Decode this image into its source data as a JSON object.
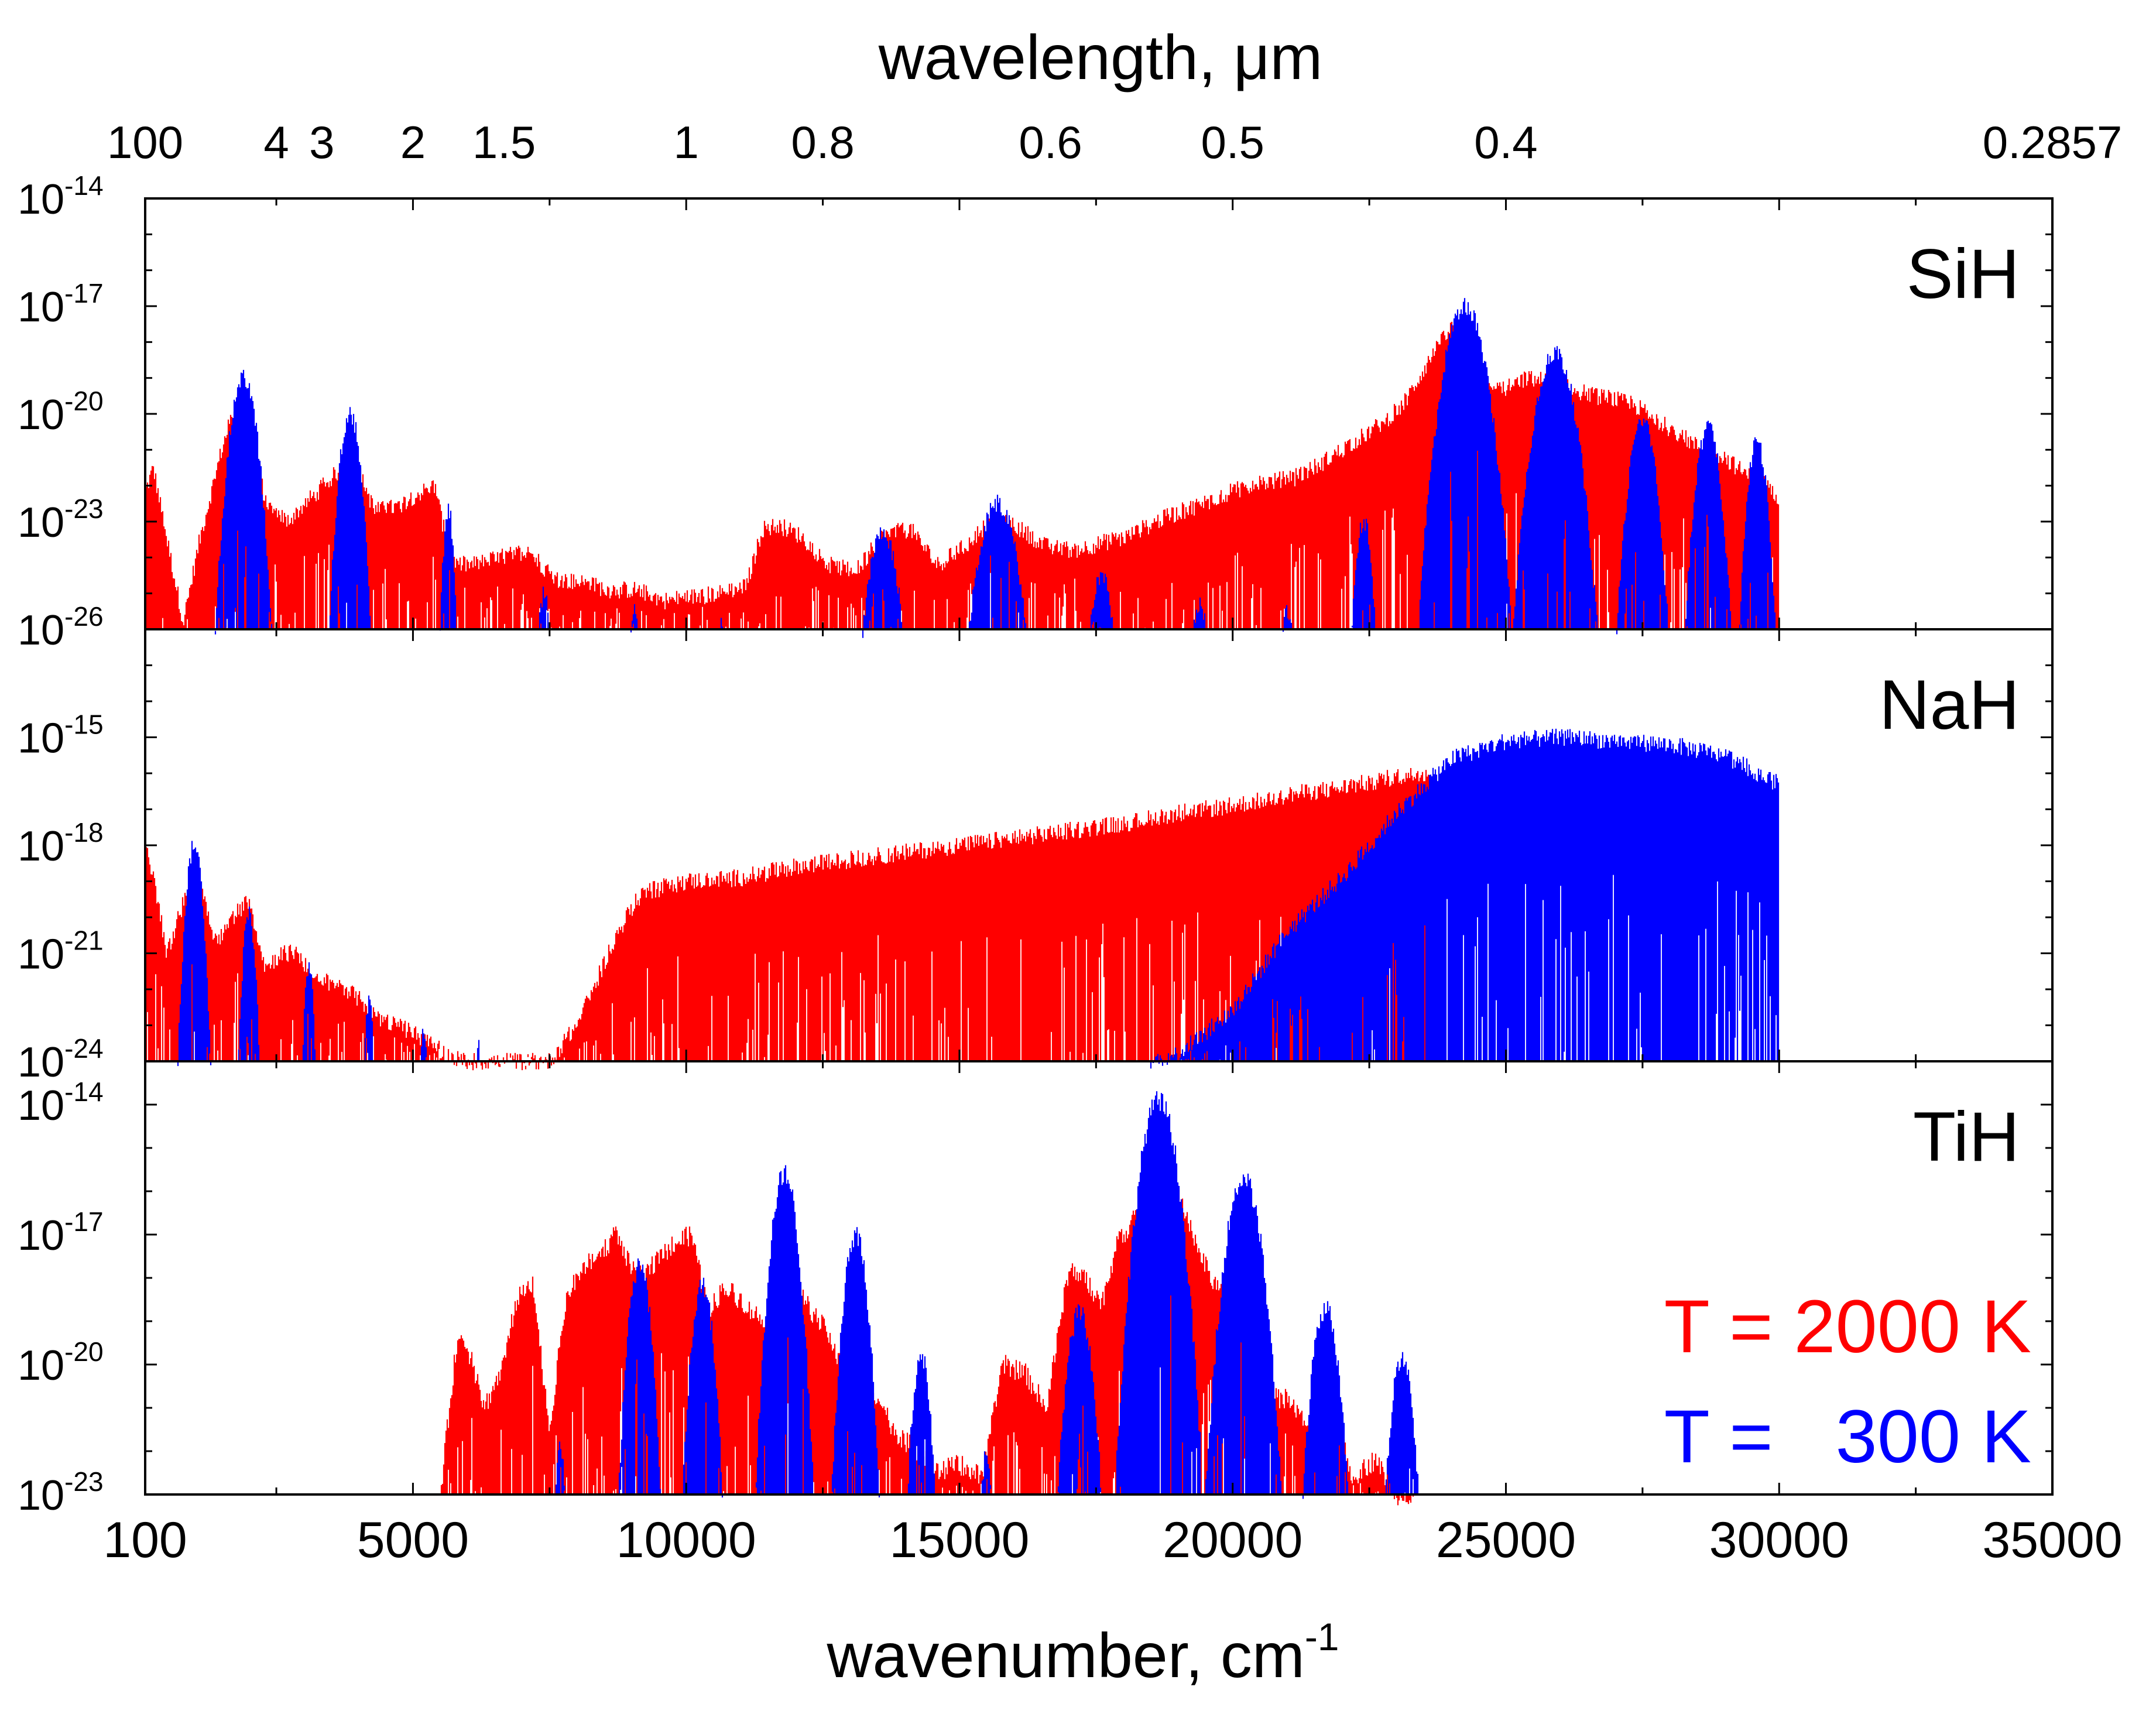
{
  "chart_data": {
    "type": "area",
    "title": "",
    "xlabel": "wavenumber, cm",
    "xlabel_sup": "-1",
    "top_xlabel": "wavelength, μm",
    "xlim": [
      100,
      35000
    ],
    "x_ticks": [
      {
        "value": 100,
        "label": "100"
      },
      {
        "value": 5000,
        "label": "5000"
      },
      {
        "value": 10000,
        "label": "10000"
      },
      {
        "value": 15000,
        "label": "15000"
      },
      {
        "value": 20000,
        "label": "20000"
      },
      {
        "value": 25000,
        "label": "25000"
      },
      {
        "value": 30000,
        "label": "30000"
      },
      {
        "value": 35000,
        "label": "35000"
      }
    ],
    "top_ticks": [
      {
        "label": "100",
        "wavenumber": 100
      },
      {
        "label": "4",
        "wavenumber": 2500
      },
      {
        "label": "3",
        "wavenumber": 3333
      },
      {
        "label": "2",
        "wavenumber": 5000
      },
      {
        "label": "1.5",
        "wavenumber": 6667
      },
      {
        "label": "1",
        "wavenumber": 10000
      },
      {
        "label": "0.8",
        "wavenumber": 12500
      },
      {
        "label": "0.6",
        "wavenumber": 16667
      },
      {
        "label": "0.5",
        "wavenumber": 20000
      },
      {
        "label": "0.4",
        "wavenumber": 25000
      },
      {
        "label": "0.2857",
        "wavenumber": 35000
      }
    ],
    "legend": [
      {
        "label": "T = 2000 K",
        "color": "#ff0000"
      },
      {
        "label": "T =   300 K",
        "color": "#0000ff"
      }
    ],
    "panels": [
      {
        "molecule": "SiH",
        "ylim_exp": [
          -26,
          -14
        ],
        "y_ticks": [
          {
            "exp": -14,
            "base": "10",
            "sup": "-14"
          },
          {
            "exp": -17,
            "base": "10",
            "sup": "-17"
          },
          {
            "exp": -20,
            "base": "10",
            "sup": "-20"
          },
          {
            "exp": -23,
            "base": "10",
            "sup": "-23"
          },
          {
            "exp": -26,
            "base": "10",
            "sup": "-26"
          }
        ],
        "series": [
          {
            "name": "T = 2000 K",
            "color": "#ff0000",
            "x": [
              100,
              250,
              500,
              800,
              1100,
              1500,
              1900,
              2300,
              2700,
              3100,
              3500,
              3900,
              4300,
              4700,
              5000,
              5400,
              5700,
              6100,
              6600,
              7100,
              7600,
              8100,
              8600,
              9100,
              9600,
              10100,
              10600,
              11100,
              11400,
              11700,
              12100,
              12600,
              13100,
              13600,
              14100,
              14600,
              15100,
              15600,
              16100,
              16600,
              17100,
              17600,
              18100,
              18600,
              19100,
              19600,
              20100,
              20600,
              21100,
              21600,
              22100,
              22600,
              23100,
              23600,
              24000,
              24300,
              24600,
              25000,
              25400,
              25800,
              26200,
              26600,
              27000,
              27400,
              27800,
              28200,
              28600,
              29000,
              29400,
              29700,
              30000
            ],
            "y": [
              -22.2,
              -21.5,
              -23.5,
              -25.8,
              -23.5,
              -21.0,
              -19.0,
              -22.5,
              -23.0,
              -22.4,
              -21.8,
              -21.2,
              -22.7,
              -22.6,
              -22.3,
              -22.0,
              -24.2,
              -24.2,
              -24.0,
              -23.8,
              -24.6,
              -24.7,
              -24.9,
              -24.9,
              -25.2,
              -25.1,
              -25.0,
              -24.8,
              -23.2,
              -23.1,
              -23.4,
              -24.2,
              -24.4,
              -23.4,
              -23.2,
              -24.2,
              -23.7,
              -22.9,
              -23.2,
              -23.7,
              -23.8,
              -23.6,
              -23.4,
              -23.0,
              -22.7,
              -22.4,
              -22.1,
              -21.9,
              -21.8,
              -21.4,
              -20.9,
              -20.4,
              -19.8,
              -18.5,
              -17.6,
              -17.9,
              -19.3,
              -19.3,
              -19.0,
              -19.1,
              -19.3,
              -19.5,
              -19.6,
              -19.8,
              -20.2,
              -20.6,
              -21.0,
              -21.2,
              -21.7,
              -21.9,
              -22.3
            ],
            "spiky": true
          },
          {
            "name": "T = 300 K",
            "color": "#0000ff",
            "peaks": [
              [
                1900,
                -19.0,
                350
              ],
              [
                3850,
                -20.0,
                280
              ],
              [
                5650,
                -22.7,
                150
              ],
              [
                7400,
                -25.0,
                170
              ],
              [
                9050,
                -25.5,
                160
              ],
              [
                10650,
                -25.9,
                150
              ],
              [
                12150,
                -26.0,
                120
              ],
              [
                13600,
                -23.3,
                400
              ],
              [
                15700,
                -22.5,
                500
              ],
              [
                17600,
                -24.5,
                300
              ],
              [
                19400,
                -25.3,
                260
              ],
              [
                21000,
                -25.5,
                230
              ],
              [
                22400,
                -23.0,
                220
              ],
              [
                24250,
                -17.0,
                520
              ],
              [
                25900,
                -18.3,
                500
              ],
              [
                27500,
                -20.2,
                350
              ],
              [
                28700,
                -20.4,
                320
              ],
              [
                29600,
                -20.8,
                260
              ]
            ],
            "spiky": true
          }
        ]
      },
      {
        "molecule": "NaH",
        "ylim_exp": [
          -24,
          -12
        ],
        "y_ticks": [
          {
            "exp": -15,
            "base": "10",
            "sup": "-15"
          },
          {
            "exp": -18,
            "base": "10",
            "sup": "-18"
          },
          {
            "exp": -21,
            "base": "10",
            "sup": "-21"
          },
          {
            "exp": -24,
            "base": "10",
            "sup": "-24"
          }
        ],
        "series": [
          {
            "name": "T = 2000 K",
            "color": "#ff0000",
            "x": [
              100,
              200,
              500,
              800,
              1100,
              1400,
              1700,
              2000,
              2300,
              2600,
              2900,
              3200,
              3500,
              3800,
              4100,
              4400,
              4700,
              5000,
              5300,
              5600,
              5900,
              6200,
              6500,
              7000,
              7500,
              7700,
              8000,
              8300,
              8600,
              8900,
              9200,
              9500,
              10000,
              11000,
              12000,
              13000,
              14000,
              15000,
              16000,
              17000,
              18000,
              19000,
              20000,
              21000,
              22000,
              23000,
              23600
            ],
            "y": [
              -17.7,
              -18.5,
              -21.0,
              -19.6,
              -19.0,
              -20.7,
              -20.0,
              -19.5,
              -21.4,
              -21.0,
              -21.0,
              -21.8,
              -21.8,
              -22.0,
              -22.4,
              -22.8,
              -23.0,
              -23.2,
              -23.5,
              -23.8,
              -24.0,
              -24.0,
              -24.0,
              -24.0,
              -24.0,
              -23.6,
              -23.0,
              -22.0,
              -20.9,
              -20.0,
              -19.3,
              -19.2,
              -19.0,
              -18.9,
              -18.6,
              -18.4,
              -18.2,
              -18.0,
              -17.8,
              -17.6,
              -17.4,
              -17.1,
              -16.9,
              -16.6,
              -16.4,
              -16.1,
              -16.0
            ],
            "spiky": true
          },
          {
            "name": "T = 300 K",
            "color": "#0000ff",
            "x": [
              18500,
              19000,
              20000,
              21000,
              22000,
              23000,
              23600,
              24000,
              25000,
              26000,
              27000,
              28000,
              29000,
              29500,
              30000
            ],
            "y": [
              -24.0,
              -23.8,
              -22.6,
              -20.4,
              -18.9,
              -17.1,
              -16.2,
              -15.6,
              -15.1,
              -15.0,
              -15.1,
              -15.2,
              -15.5,
              -15.9,
              -16.3
            ],
            "peaks": [
              [
                1000,
                -18.0,
                220
              ],
              [
                2000,
                -19.9,
                170
              ],
              [
                3100,
                -21.3,
                130
              ],
              [
                4200,
                -22.2,
                110
              ],
              [
                5200,
                -23.0,
                90
              ],
              [
                6200,
                -23.6,
                70
              ]
            ],
            "spiky": true
          }
        ]
      },
      {
        "molecule": "TiH",
        "ylim_exp": [
          -23,
          -13
        ],
        "y_ticks": [
          {
            "exp": -14,
            "base": "10",
            "sup": "-14"
          },
          {
            "exp": -17,
            "base": "10",
            "sup": "-17"
          },
          {
            "exp": -20,
            "base": "10",
            "sup": "-20"
          },
          {
            "exp": -23,
            "base": "10",
            "sup": "-23"
          }
        ],
        "series": [
          {
            "name": "T = 2000 K",
            "color": "#ff0000",
            "x": [
              5500,
              5800,
              6000,
              6300,
              6600,
              6900,
              7200,
              7500,
              7800,
              8100,
              8400,
              8700,
              9000,
              9200,
              9500,
              9800,
              10100,
              10400,
              10700,
              11000,
              11400,
              11800,
              12200,
              12600,
              13000,
              13400,
              13800,
              14200,
              14600,
              15000,
              15400,
              15800,
              16200,
              16600,
              17000,
              17300,
              17600,
              17900,
              18200,
              18600,
              19000,
              19400,
              19800,
              20200,
              20600,
              21000,
              21400,
              21800,
              22200,
              22600,
              23000,
              23400
            ],
            "y": [
              -23.0,
              -19.5,
              -19.6,
              -21.0,
              -20.2,
              -18.5,
              -18.2,
              -21.5,
              -18.5,
              -17.8,
              -17.5,
              -17.0,
              -17.8,
              -18.0,
              -17.5,
              -17.2,
              -17.0,
              -18.8,
              -18.2,
              -18.5,
              -19.0,
              -18.0,
              -18.6,
              -19.3,
              -20.5,
              -20.5,
              -21.5,
              -22.0,
              -22.5,
              -22.3,
              -22.6,
              -20.0,
              -20.2,
              -21.0,
              -17.8,
              -18.0,
              -18.6,
              -17.2,
              -16.6,
              -15.8,
              -16.0,
              -17.5,
              -18.4,
              -19.4,
              -20.7,
              -20.8,
              -21.5,
              -21.0,
              -22.6,
              -22.2,
              -23.0,
              -23.0
            ],
            "spiky": true
          },
          {
            "name": "T = 300 K",
            "color": "#0000ff",
            "peaks": [
              [
                7700,
                -21.9,
                150
              ],
              [
                9150,
                -17.7,
                300
              ],
              [
                10300,
                -18.2,
                300
              ],
              [
                11800,
                -15.6,
                350
              ],
              [
                13100,
                -17.0,
                320
              ],
              [
                14300,
                -19.8,
                250
              ],
              [
                15500,
                -22.1,
                180
              ],
              [
                17200,
                -18.8,
                350
              ],
              [
                18650,
                -13.9,
                480
              ],
              [
                20200,
                -15.7,
                460
              ],
              [
                21700,
                -18.7,
                360
              ],
              [
                23100,
                -19.8,
                300
              ]
            ],
            "spiky": true
          }
        ]
      }
    ]
  }
}
